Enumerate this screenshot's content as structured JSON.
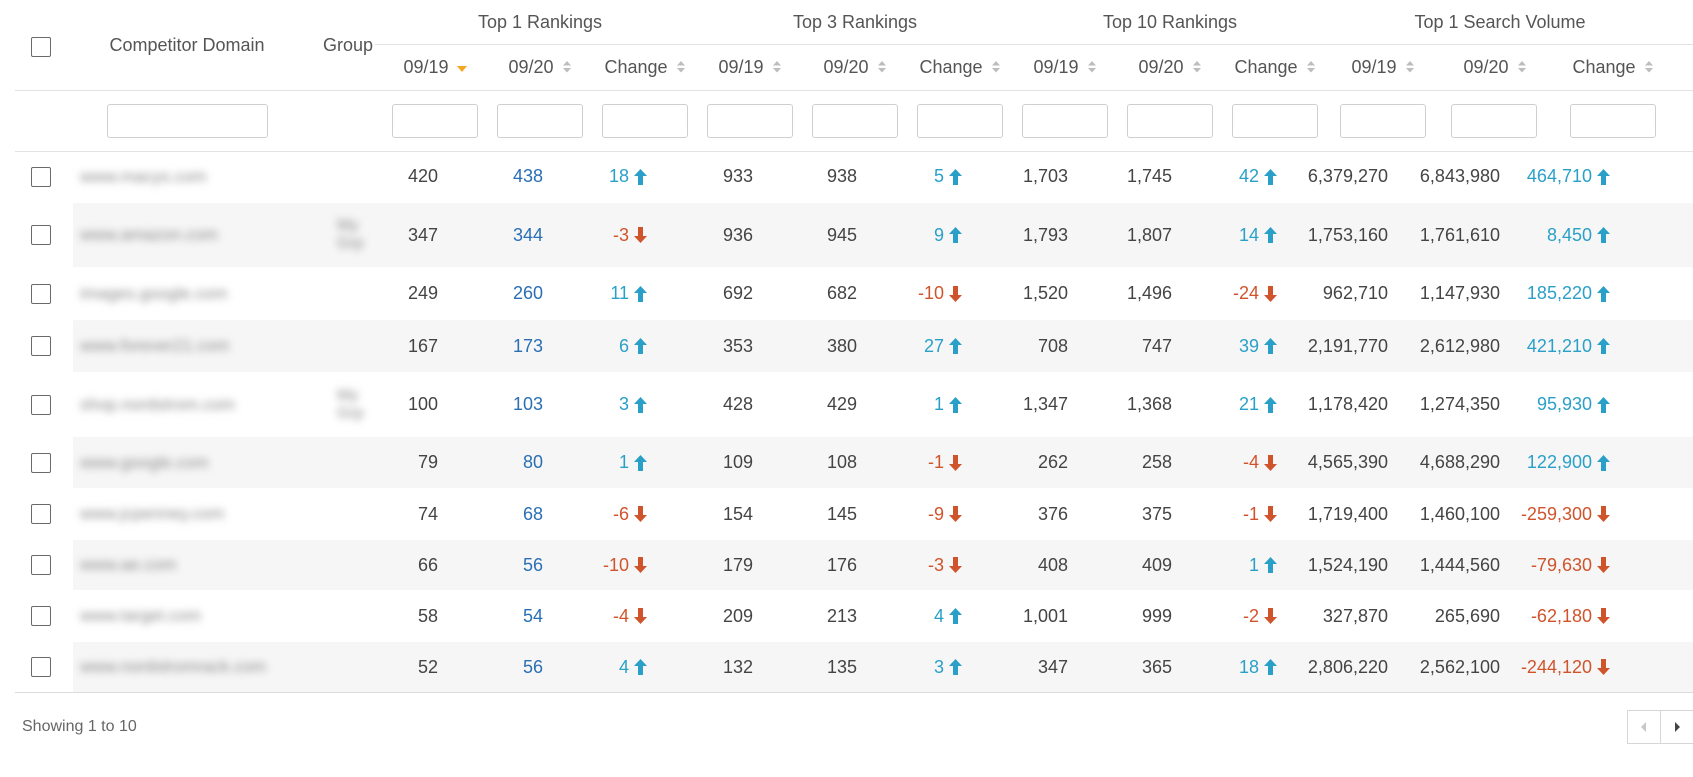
{
  "header": {
    "competitor_domain": "Competitor Domain",
    "group": "Group",
    "groups": [
      "Top 1 Rankings",
      "Top 3 Rankings",
      "Top 10 Rankings",
      "Top 1 Search Volume"
    ],
    "sub": [
      "09/19",
      "09/20",
      "Change"
    ],
    "sorted_column": "Top 1 Rankings 09/19",
    "sort_active_color": "#f5a623",
    "sort_idle_color": "#bdbdbd"
  },
  "colors": {
    "up": "#2aa0c8",
    "down": "#d0542b",
    "blue_value": "#2a6fb4"
  },
  "rows": [
    {
      "domain": "www.macys.com",
      "group": "",
      "v": [
        "420",
        "438",
        "18",
        "933",
        "938",
        "5",
        "1,703",
        "1,745",
        "42",
        "6,379,270",
        "6,843,980",
        "464,710"
      ],
      "dir": [
        "up",
        "up",
        "up",
        "up"
      ]
    },
    {
      "domain": "www.amazon.com",
      "group": "My\nGrp",
      "v": [
        "347",
        "344",
        "-3",
        "936",
        "945",
        "9",
        "1,793",
        "1,807",
        "14",
        "1,753,160",
        "1,761,610",
        "8,450"
      ],
      "dir": [
        "down",
        "up",
        "up",
        "up"
      ]
    },
    {
      "domain": "images.google.com",
      "group": "",
      "v": [
        "249",
        "260",
        "11",
        "692",
        "682",
        "-10",
        "1,520",
        "1,496",
        "-24",
        "962,710",
        "1,147,930",
        "185,220"
      ],
      "dir": [
        "up",
        "down",
        "down",
        "up"
      ]
    },
    {
      "domain": "www.forever21.com",
      "group": "",
      "v": [
        "167",
        "173",
        "6",
        "353",
        "380",
        "27",
        "708",
        "747",
        "39",
        "2,191,770",
        "2,612,980",
        "421,210"
      ],
      "dir": [
        "up",
        "up",
        "up",
        "up"
      ]
    },
    {
      "domain": "shop.nordstrom.com",
      "group": "My\nGrp",
      "v": [
        "100",
        "103",
        "3",
        "428",
        "429",
        "1",
        "1,347",
        "1,368",
        "21",
        "1,178,420",
        "1,274,350",
        "95,930"
      ],
      "dir": [
        "up",
        "up",
        "up",
        "up"
      ]
    },
    {
      "domain": "www.google.com",
      "group": "",
      "v": [
        "79",
        "80",
        "1",
        "109",
        "108",
        "-1",
        "262",
        "258",
        "-4",
        "4,565,390",
        "4,688,290",
        "122,900"
      ],
      "dir": [
        "up",
        "down",
        "down",
        "up"
      ]
    },
    {
      "domain": "www.jcpenney.com",
      "group": "",
      "v": [
        "74",
        "68",
        "-6",
        "154",
        "145",
        "-9",
        "376",
        "375",
        "-1",
        "1,719,400",
        "1,460,100",
        "-259,300"
      ],
      "dir": [
        "down",
        "down",
        "down",
        "down"
      ]
    },
    {
      "domain": "www.ae.com",
      "group": "",
      "v": [
        "66",
        "56",
        "-10",
        "179",
        "176",
        "-3",
        "408",
        "409",
        "1",
        "1,524,190",
        "1,444,560",
        "-79,630"
      ],
      "dir": [
        "down",
        "down",
        "up",
        "down"
      ]
    },
    {
      "domain": "www.target.com",
      "group": "",
      "v": [
        "58",
        "54",
        "-4",
        "209",
        "213",
        "4",
        "1,001",
        "999",
        "-2",
        "327,870",
        "265,690",
        "-62,180"
      ],
      "dir": [
        "down",
        "up",
        "down",
        "down"
      ]
    },
    {
      "domain": "www.nordstromrack.com",
      "group": "",
      "v": [
        "52",
        "56",
        "4",
        "132",
        "135",
        "3",
        "347",
        "365",
        "18",
        "2,806,220",
        "2,562,100",
        "-244,120"
      ],
      "dir": [
        "up",
        "up",
        "up",
        "down"
      ]
    }
  ],
  "footer": {
    "showing": "Showing 1 to 10"
  }
}
